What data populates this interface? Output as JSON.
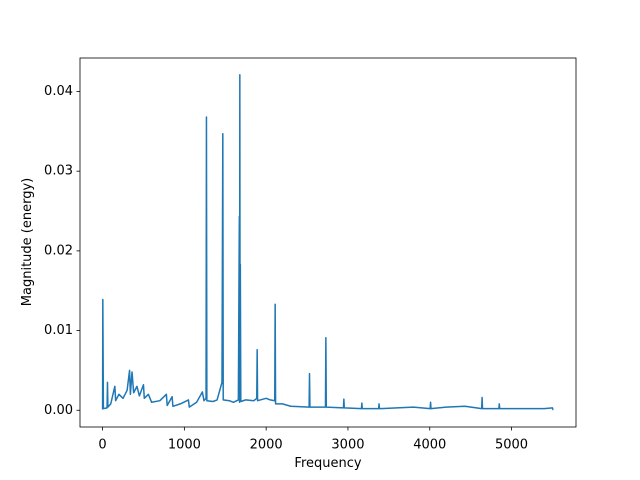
{
  "chart_data": {
    "type": "line",
    "xlabel": "Frequency",
    "ylabel": "Magnitude (energy)",
    "color": "#1f77b4",
    "x": [
      0,
      3,
      10,
      55,
      60,
      65,
      100,
      150,
      160,
      200,
      250,
      300,
      330,
      340,
      360,
      380,
      420,
      450,
      500,
      510,
      560,
      600,
      700,
      780,
      790,
      850,
      860,
      950,
      1050,
      1060,
      1150,
      1220,
      1240,
      1265,
      1270,
      1275,
      1350,
      1400,
      1460,
      1470,
      1475,
      1550,
      1600,
      1660,
      1672,
      1675,
      1678,
      1681,
      1684,
      1690,
      1750,
      1850,
      1885,
      1890,
      1895,
      2000,
      2050,
      2105,
      2110,
      2115,
      2200,
      2300,
      2525,
      2530,
      2535,
      2725,
      2730,
      2735,
      2945,
      2950,
      2955,
      3165,
      3170,
      3175,
      3375,
      3380,
      3385,
      3600,
      3800,
      4005,
      4010,
      4015,
      4200,
      4430,
      4635,
      4640,
      4645,
      4845,
      4850,
      4855,
      5000,
      5200,
      5400,
      5500,
      5505,
      5512
    ],
    "values": [
      0.0001,
      0.0139,
      0.0002,
      0.0003,
      0.0035,
      0.0004,
      0.0008,
      0.003,
      0.0012,
      0.002,
      0.0015,
      0.0025,
      0.005,
      0.002,
      0.0048,
      0.0022,
      0.003,
      0.0018,
      0.0032,
      0.0015,
      0.002,
      0.001,
      0.0012,
      0.002,
      0.0006,
      0.0017,
      0.0005,
      0.0008,
      0.0013,
      0.0004,
      0.001,
      0.0023,
      0.0012,
      0.0015,
      0.0368,
      0.0012,
      0.0011,
      0.0013,
      0.0035,
      0.0347,
      0.0013,
      0.0012,
      0.001,
      0.0013,
      0.0243,
      0.001,
      0.0421,
      0.0012,
      0.0183,
      0.0011,
      0.0013,
      0.0012,
      0.0015,
      0.0076,
      0.0012,
      0.0015,
      0.0013,
      0.0012,
      0.0133,
      0.0008,
      0.0008,
      0.0005,
      0.0004,
      0.0046,
      0.0004,
      0.0004,
      0.0091,
      0.0004,
      0.0003,
      0.0014,
      0.0003,
      0.0002,
      0.0009,
      0.0002,
      0.0002,
      0.0008,
      0.0002,
      0.0003,
      0.0004,
      0.0002,
      0.001,
      0.0002,
      0.0004,
      0.0005,
      0.0002,
      0.0016,
      0.0002,
      0.0002,
      0.0008,
      0.0002,
      0.0002,
      0.0002,
      0.0002,
      0.0003,
      0.0001,
      0.0001
    ],
    "xlim": [
      -276,
      5788
    ],
    "ylim": [
      -0.0021,
      0.0442
    ],
    "xticks": [
      0,
      1000,
      2000,
      3000,
      4000,
      5000
    ],
    "yticks": [
      {
        "value": 0,
        "label": "0.00"
      },
      {
        "value": 0.01,
        "label": "0.01"
      },
      {
        "value": 0.02,
        "label": "0.02"
      },
      {
        "value": 0.03,
        "label": "0.03"
      },
      {
        "value": 0.04,
        "label": "0.04"
      }
    ],
    "grid": false
  }
}
